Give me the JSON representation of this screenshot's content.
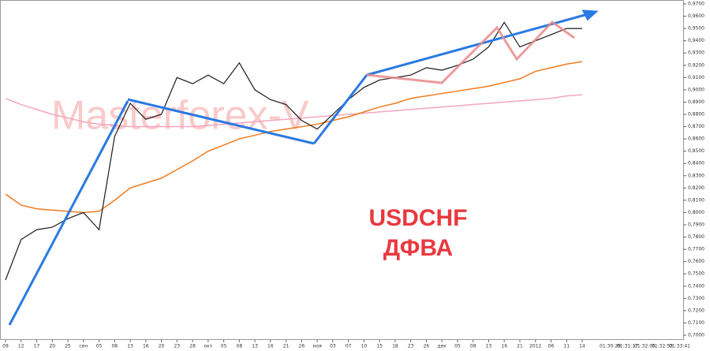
{
  "chart_data": {
    "type": "line",
    "watermark": "Masterforex-V",
    "annotations": [
      "USDCHF",
      "ДФВА"
    ],
    "categories": [
      "09",
      "12",
      "17",
      "20",
      "25",
      "сен",
      "05",
      "08",
      "13",
      "16",
      "20",
      "23",
      "28",
      "окт",
      "05",
      "08",
      "13",
      "16",
      "21",
      "26",
      "ноя",
      "03",
      "07",
      "10",
      "15",
      "18",
      "23",
      "26",
      "дек",
      "05",
      "08",
      "13",
      "16",
      "21",
      "2012",
      "06",
      "11",
      "14"
    ],
    "time_labels": [
      "01:30:29",
      "01:31:17",
      "01:32:05",
      "01:32:53",
      "01:33:41"
    ],
    "series": [
      {
        "color": "#1a1a1a",
        "values": [
          0.745,
          0.778,
          0.786,
          0.788,
          0.795,
          0.8,
          0.786,
          0.862,
          0.889,
          0.876,
          0.88,
          0.91,
          0.905,
          0.912,
          0.905,
          0.922,
          0.9,
          0.892,
          0.888,
          0.875,
          0.868,
          0.88,
          0.892,
          0.902,
          0.908,
          0.91,
          0.912,
          0.918,
          0.916,
          0.92,
          0.925,
          0.935,
          0.955,
          0.935,
          0.94,
          0.945,
          0.95,
          0.95
        ]
      },
      {
        "color": "#f07b1e",
        "values": [
          0.815,
          0.806,
          0.803,
          0.802,
          0.801,
          0.8,
          0.801,
          0.81,
          0.82,
          0.824,
          0.828,
          0.835,
          0.842,
          0.85,
          0.855,
          0.86,
          0.863,
          0.866,
          0.868,
          0.87,
          0.872,
          0.875,
          0.878,
          0.882,
          0.886,
          0.889,
          0.893,
          0.895,
          0.897,
          0.899,
          0.901,
          0.903,
          0.906,
          0.909,
          0.915,
          0.918,
          0.921,
          0.923
        ]
      },
      {
        "color": "#f3a6c0",
        "values": [
          0.893,
          0.888,
          0.884,
          0.88,
          0.877,
          0.874,
          0.872,
          0.871,
          0.87,
          0.87,
          0.87,
          0.87,
          0.87,
          0.871,
          0.872,
          0.873,
          0.874,
          0.875,
          0.876,
          0.877,
          0.878,
          0.879,
          0.88,
          0.881,
          0.882,
          0.883,
          0.884,
          0.885,
          0.886,
          0.887,
          0.888,
          0.889,
          0.89,
          0.891,
          0.892,
          0.893,
          0.895,
          0.896
        ]
      }
    ],
    "ylim": [
      0.7,
      0.97
    ],
    "yticks": [
      {
        "value": 0.97,
        "label": "0,9700"
      },
      {
        "value": 0.96,
        "label": "0,9600"
      },
      {
        "value": 0.95,
        "label": "0,9500"
      },
      {
        "value": 0.94,
        "label": "0,9400"
      },
      {
        "value": 0.93,
        "label": "0,9300"
      },
      {
        "value": 0.92,
        "label": "0,9200"
      },
      {
        "value": 0.91,
        "label": "0,9100"
      },
      {
        "value": 0.9,
        "label": "0,9000"
      },
      {
        "value": 0.89,
        "label": "0,8900"
      },
      {
        "value": 0.88,
        "label": "0,8800"
      },
      {
        "value": 0.87,
        "label": "0,8700"
      },
      {
        "value": 0.86,
        "label": "0,8600"
      },
      {
        "value": 0.85,
        "label": "0,8500"
      },
      {
        "value": 0.84,
        "label": "0,8400"
      },
      {
        "value": 0.83,
        "label": "0,8300"
      },
      {
        "value": 0.82,
        "label": "0,8200"
      },
      {
        "value": 0.81,
        "label": "0,8100"
      },
      {
        "value": 0.8,
        "label": "0,8000"
      },
      {
        "value": 0.79,
        "label": "0,7900"
      },
      {
        "value": 0.78,
        "label": "0,7800"
      },
      {
        "value": 0.77,
        "label": "0,7700"
      },
      {
        "value": 0.76,
        "label": "0,7600"
      },
      {
        "value": 0.75,
        "label": "0,7500"
      },
      {
        "value": 0.74,
        "label": "0,7400"
      },
      {
        "value": 0.73,
        "label": "0,7300"
      },
      {
        "value": 0.72,
        "label": "0,7200"
      },
      {
        "value": 0.71,
        "label": "0,7100"
      },
      {
        "value": 0.7,
        "label": "0,7000"
      }
    ]
  }
}
